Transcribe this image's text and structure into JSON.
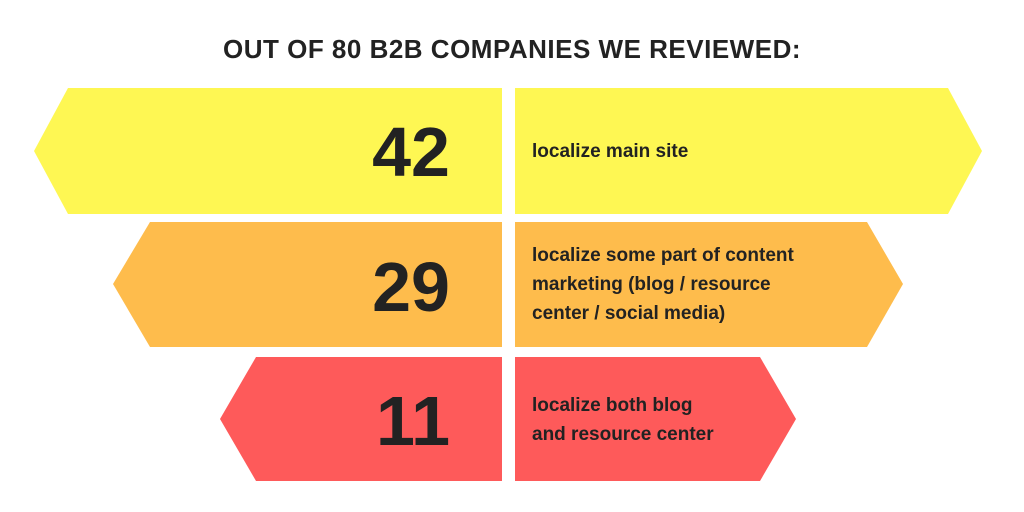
{
  "title": "OUT OF 80 B2B COMPANIES WE REVIEWED:",
  "colors": {
    "row1": "#fef753",
    "row2": "#febc4c",
    "row3": "#fe5a5a",
    "text": "#222222"
  },
  "rows": [
    {
      "number": "42",
      "lines": [
        "localize main site"
      ]
    },
    {
      "number": "29",
      "lines": [
        "localize some part of content",
        "marketing (blog / resource",
        "center / social media)"
      ]
    },
    {
      "number": "11",
      "lines": [
        "localize both blog",
        "and resource center"
      ]
    }
  ]
}
